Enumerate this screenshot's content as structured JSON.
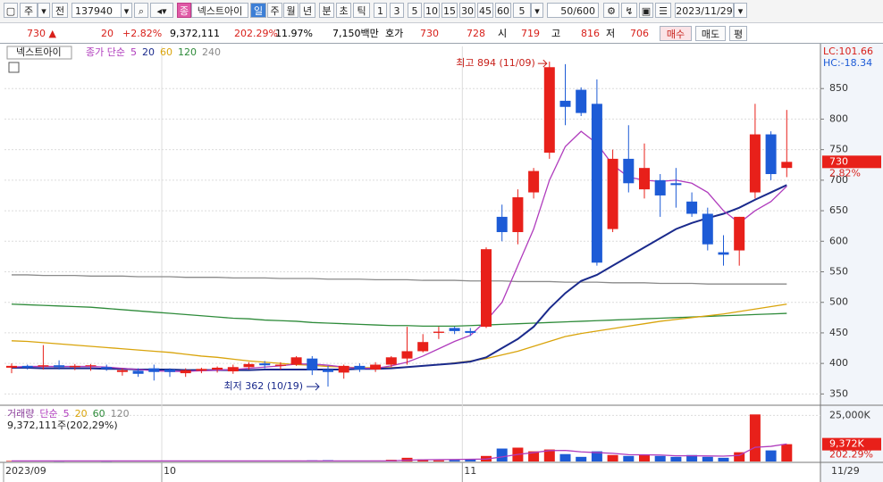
{
  "toolbar": {
    "period": "주",
    "scope": "전",
    "code": "137940",
    "badge": "종",
    "name": "넥스트아이",
    "intervals": [
      "일",
      "주",
      "월",
      "년",
      "분",
      "초",
      "틱"
    ],
    "minutes": [
      "1",
      "3",
      "5",
      "10",
      "15",
      "30",
      "45",
      "60"
    ],
    "step": "5",
    "count": "50/600",
    "date": "2023/11/29"
  },
  "quote": {
    "price": "730 ▲",
    "change": "20",
    "rate": "+2.82%",
    "volume": "9,372,111",
    "volume_rate": "202.29%",
    "turnover": "11.97%",
    "amount": "7,150백만",
    "bid_label": "호가",
    "ask": "730",
    "bid": "728",
    "open_label": "시",
    "open": "719",
    "high_label": "고",
    "high": "816",
    "low_label": "저",
    "low": "706",
    "buy": "매수",
    "sell": "매도",
    "avg": "평"
  },
  "chart_data": [
    {
      "type": "candlestick",
      "legend_name": "넥스트아이",
      "legend_prefix": "종가 단순",
      "lc": "LC:101.66",
      "hc": "HC:-18.34",
      "categories": [
        "2023/09",
        null,
        null,
        null,
        null,
        null,
        null,
        null,
        null,
        null,
        "10",
        null,
        null,
        null,
        null,
        null,
        null,
        null,
        null,
        null,
        null,
        null,
        null,
        null,
        null,
        null,
        null,
        null,
        null,
        "11",
        null,
        null,
        null,
        null,
        null,
        null,
        null,
        null,
        null,
        null,
        null,
        null,
        null,
        null,
        null,
        null,
        null,
        null,
        null,
        null
      ],
      "x_end_label": "11/29",
      "up_color": "#e8201a",
      "down_color": "#1d5bd6",
      "grid": true,
      "ohlc": {
        "open": [
          393,
          396,
          395,
          397,
          394,
          396,
          394,
          386,
          388,
          392,
          390,
          384,
          388,
          390,
          387,
          394,
          400,
          396,
          398,
          408,
          390,
          385,
          396,
          390,
          398,
          408,
          420,
          450,
          458,
          453,
          460,
          640,
          615,
          680,
          745,
          830,
          848,
          825,
          620,
          735,
          685,
          700,
          695,
          665,
          645,
          582,
          585,
          680,
          775,
          720
        ],
        "high": [
          400,
          398,
          430,
          405,
          399,
          399,
          398,
          392,
          392,
          398,
          392,
          392,
          393,
          395,
          398,
          402,
          404,
          402,
          412,
          412,
          396,
          398,
          400,
          402,
          412,
          460,
          448,
          460,
          460,
          458,
          590,
          660,
          685,
          720,
          894,
          890,
          852,
          865,
          750,
          790,
          760,
          710,
          720,
          680,
          655,
          610,
          640,
          825,
          780,
          815
        ],
        "low": [
          384,
          390,
          390,
          390,
          389,
          388,
          388,
          380,
          378,
          372,
          378,
          378,
          384,
          385,
          383,
          390,
          392,
          390,
          396,
          381,
          362,
          375,
          386,
          386,
          394,
          398,
          418,
          440,
          448,
          445,
          458,
          600,
          595,
          670,
          735,
          790,
          805,
          560,
          615,
          680,
          670,
          640,
          655,
          640,
          585,
          560,
          560,
          670,
          700,
          705
        ],
        "close": [
          396,
          393,
          397,
          394,
          396,
          397,
          391,
          389,
          383,
          386,
          386,
          389,
          391,
          393,
          394,
          399,
          397,
          398,
          410,
          389,
          386,
          396,
          390,
          398,
          410,
          420,
          435,
          452,
          453,
          450,
          587,
          615,
          672,
          715,
          885,
          820,
          810,
          565,
          735,
          695,
          720,
          675,
          692,
          645,
          595,
          578,
          640,
          775,
          710,
          730
        ]
      },
      "lines": [
        {
          "name": "5",
          "color": "#b03cbd",
          "values": [
            394,
            395,
            395,
            395,
            395,
            395,
            394,
            392,
            390,
            388,
            387,
            387,
            388,
            389,
            390,
            392,
            394,
            396,
            399,
            399,
            397,
            394,
            392,
            392,
            396,
            402,
            412,
            424,
            436,
            446,
            470,
            500,
            560,
            620,
            700,
            755,
            780,
            760,
            725,
            705,
            700,
            698,
            700,
            695,
            680,
            650,
            630,
            650,
            665,
            690
          ]
        },
        {
          "name": "20",
          "color": "#1a2a8c",
          "values": [
            393,
            393,
            392,
            392,
            392,
            392,
            391,
            391,
            390,
            390,
            390,
            389,
            389,
            389,
            389,
            389,
            390,
            390,
            390,
            390,
            390,
            390,
            391,
            391,
            392,
            394,
            396,
            398,
            400,
            403,
            410,
            425,
            440,
            460,
            490,
            515,
            535,
            545,
            560,
            575,
            590,
            605,
            620,
            630,
            638,
            645,
            655,
            668,
            680,
            692
          ]
        },
        {
          "name": "60",
          "color": "#d9a40b",
          "values": [
            437,
            436,
            434,
            432,
            430,
            428,
            426,
            424,
            422,
            420,
            418,
            415,
            412,
            410,
            407,
            404,
            402,
            400,
            398,
            397,
            395,
            394,
            393,
            393,
            393,
            394,
            396,
            398,
            401,
            404,
            408,
            414,
            420,
            428,
            436,
            444,
            449,
            453,
            457,
            461,
            465,
            469,
            472,
            475,
            478,
            481,
            485,
            489,
            493,
            497
          ]
        },
        {
          "name": "120",
          "color": "#2e8b3a",
          "values": [
            497,
            496,
            495,
            494,
            493,
            492,
            490,
            488,
            486,
            484,
            482,
            480,
            478,
            476,
            474,
            473,
            471,
            470,
            469,
            467,
            466,
            465,
            464,
            463,
            462,
            462,
            461,
            461,
            461,
            462,
            463,
            464,
            465,
            466,
            467,
            468,
            469,
            470,
            471,
            472,
            473,
            474,
            475,
            476,
            477,
            478,
            479,
            480,
            481,
            482
          ]
        },
        {
          "name": "240",
          "color": "#8a8a8a",
          "values": [
            545,
            545,
            544,
            544,
            544,
            543,
            543,
            543,
            542,
            542,
            542,
            541,
            541,
            541,
            540,
            540,
            540,
            539,
            539,
            539,
            538,
            538,
            538,
            537,
            537,
            537,
            536,
            536,
            536,
            535,
            535,
            535,
            534,
            534,
            534,
            533,
            533,
            533,
            532,
            532,
            532,
            531,
            531,
            531,
            530,
            530,
            530,
            530,
            530,
            530
          ]
        }
      ],
      "ylim": [
        333,
        919
      ],
      "yticks": [
        350,
        400,
        450,
        500,
        550,
        600,
        650,
        700,
        750,
        800,
        850
      ],
      "annotations": [
        {
          "text": "최고 894 (11/09)",
          "color": "#c8201a"
        },
        {
          "text": "최저 362 (10/19)",
          "color": "#1a2a8c"
        }
      ],
      "last": {
        "value": 730,
        "label": "730",
        "change": "2.82%"
      }
    },
    {
      "type": "bar",
      "legend_prefix": "거래량",
      "legend_method": "단순",
      "summary": "9,372,111주(202,29%)",
      "values": [
        300,
        250,
        400,
        200,
        250,
        300,
        200,
        250,
        300,
        400,
        350,
        300,
        250,
        300,
        350,
        400,
        300,
        350,
        500,
        600,
        700,
        400,
        350,
        500,
        900,
        2000,
        1200,
        600,
        800,
        1000,
        3000,
        7000,
        7500,
        5500,
        6500,
        4000,
        2500,
        5500,
        3500,
        3000,
        3500,
        3000,
        2500,
        3500,
        2500,
        2000,
        5000,
        25500,
        6000,
        9372
      ],
      "lines": [
        {
          "name": "5",
          "color": "#b03cbd",
          "values": [
            300,
            300,
            300,
            300,
            300,
            300,
            300,
            300,
            300,
            300,
            300,
            300,
            300,
            300,
            300,
            300,
            300,
            300,
            300,
            300,
            300,
            300,
            300,
            300,
            300,
            700,
            900,
            1000,
            1100,
            1200,
            1300,
            2500,
            3800,
            4800,
            5900,
            6000,
            5200,
            4800,
            4400,
            3700,
            3600,
            3500,
            3100,
            3100,
            3000,
            2900,
            3300,
            7700,
            8200,
            9500
          ]
        },
        {
          "name": "20",
          "color": "#d9a40b"
        },
        {
          "name": "60",
          "color": "#2e8b3a"
        },
        {
          "name": "120",
          "color": "#8a8a8a"
        }
      ],
      "ylim": [
        0,
        30000
      ],
      "yticks": [
        {
          "value": 25000,
          "label": "25,000K"
        }
      ],
      "last": {
        "value": 9372,
        "label": "9,372K",
        "change": "202.29%"
      }
    }
  ]
}
